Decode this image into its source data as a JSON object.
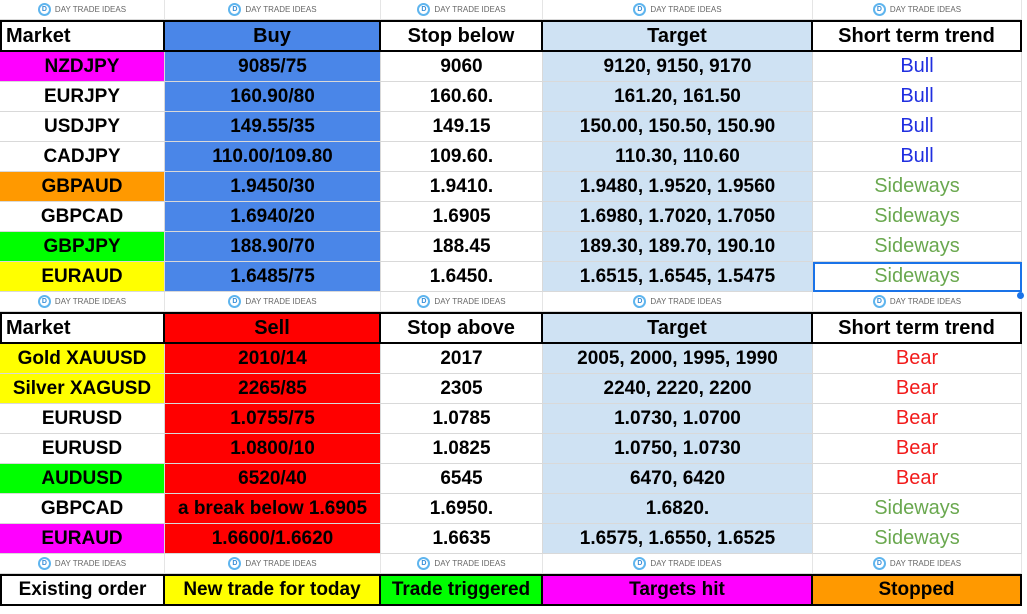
{
  "watermark": "DAY TRADE IDEAS",
  "colors": {
    "buy": "#4a86e8",
    "sell": "#ff0000",
    "target": "#cfe2f3",
    "magenta": "#ff00ff",
    "orange": "#ff9900",
    "green": "#00ff00",
    "yellow": "#ffff00",
    "bull": "#1f2ee0",
    "sideways": "#6aa84f",
    "bear": "#f21b1b"
  },
  "buy_table": {
    "headers": [
      "Market",
      "Buy",
      "Stop below",
      "Target",
      "Short term trend"
    ],
    "rows": [
      {
        "market": "NZDJPY",
        "entry": "9085/75",
        "stop": "9060",
        "target": "9120, 9150, 9170",
        "trend": "Bull",
        "market_color": "#ff00ff"
      },
      {
        "market": "EURJPY",
        "entry": "160.90/80",
        "stop": "160.60.",
        "target": "161.20, 161.50",
        "trend": "Bull",
        "market_color": "#ffffff"
      },
      {
        "market": "USDJPY",
        "entry": "149.55/35",
        "stop": "149.15",
        "target": "150.00, 150.50, 150.90",
        "trend": "Bull",
        "market_color": "#ffffff"
      },
      {
        "market": "CADJPY",
        "entry": "110.00/109.80",
        "stop": "109.60.",
        "target": "110.30, 110.60",
        "trend": "Bull",
        "market_color": "#ffffff"
      },
      {
        "market": "GBPAUD",
        "entry": "1.9450/30",
        "stop": "1.9410.",
        "target": "1.9480, 1.9520, 1.9560",
        "trend": "Sideways",
        "market_color": "#ff9900"
      },
      {
        "market": "GBPCAD",
        "entry": "1.6940/20",
        "stop": "1.6905",
        "target": "1.6980, 1.7020, 1.7050",
        "trend": "Sideways",
        "market_color": "#ffffff"
      },
      {
        "market": "GBPJPY",
        "entry": "188.90/70",
        "stop": "188.45",
        "target": "189.30, 189.70, 190.10",
        "trend": "Sideways",
        "market_color": "#00ff00"
      },
      {
        "market": "EURAUD",
        "entry": "1.6485/75",
        "stop": "1.6450.",
        "target": "1.6515, 1.6545, 1.5475",
        "trend": "Sideways",
        "market_color": "#ffff00"
      }
    ]
  },
  "sell_table": {
    "headers": [
      "Market",
      "Sell",
      "Stop above",
      "Target",
      "Short term trend"
    ],
    "rows": [
      {
        "market": "Gold XAUUSD",
        "entry": "2010/14",
        "stop": "2017",
        "target": "2005, 2000, 1995, 1990",
        "trend": "Bear",
        "market_color": "#ffff00"
      },
      {
        "market": "Silver XAGUSD",
        "entry": "2265/85",
        "stop": "2305",
        "target": "2240, 2220, 2200",
        "trend": "Bear",
        "market_color": "#ffff00"
      },
      {
        "market": "EURUSD",
        "entry": "1.0755/75",
        "stop": "1.0785",
        "target": "1.0730, 1.0700",
        "trend": "Bear",
        "market_color": "#ffffff"
      },
      {
        "market": "EURUSD",
        "entry": "1.0800/10",
        "stop": "1.0825",
        "target": "1.0750, 1.0730",
        "trend": "Bear",
        "market_color": "#ffffff"
      },
      {
        "market": "AUDUSD",
        "entry": "6520/40",
        "stop": "6545",
        "target": "6470, 6420",
        "trend": "Bear",
        "market_color": "#00ff00"
      },
      {
        "market": "GBPCAD",
        "entry": "a break below 1.6905",
        "stop": "1.6950.",
        "target": "1.6820.",
        "trend": "Sideways",
        "market_color": "#ffffff"
      },
      {
        "market": "EURAUD",
        "entry": "1.6600/1.6620",
        "stop": "1.6635",
        "target": "1.6575, 1.6550, 1.6525",
        "trend": "Sideways",
        "market_color": "#ff00ff"
      }
    ]
  },
  "legend": [
    {
      "label": "Existing order",
      "color": "#ffffff"
    },
    {
      "label": "New trade for today",
      "color": "#ffff00"
    },
    {
      "label": "Trade triggered",
      "color": "#00ff00"
    },
    {
      "label": "Targets hit",
      "color": "#ff00ff"
    },
    {
      "label": "Stopped",
      "color": "#ff9900"
    }
  ]
}
